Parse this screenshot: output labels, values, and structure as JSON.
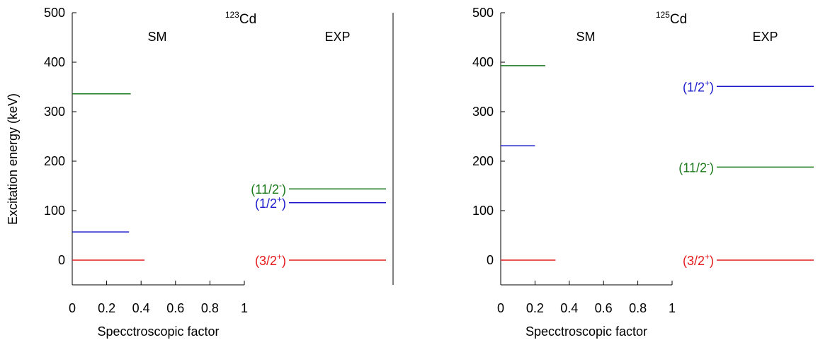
{
  "ylabel": "Excitation energy (keV)",
  "chart_data": [
    {
      "type": "bar",
      "nucleus": {
        "mass": "123",
        "symbol": "Cd"
      },
      "sm_label": "SM",
      "exp_label": "EXP",
      "xlabel": "Specctroscopic factor",
      "xticks": [
        "0",
        "0.2",
        "0.4",
        "0.6",
        "0.8",
        "1"
      ],
      "yticks": [
        "0",
        "100",
        "200",
        "300",
        "400",
        "500"
      ],
      "xlim": [
        0,
        1
      ],
      "ylim": [
        -50,
        500
      ],
      "sm_levels": [
        {
          "energy": 0,
          "factor": 0.42,
          "color": "#e41a1c"
        },
        {
          "energy": 57,
          "factor": 0.33,
          "color": "#1a1acc"
        },
        {
          "energy": 336,
          "factor": 0.34,
          "color": "#1b7a1b"
        }
      ],
      "exp_levels": [
        {
          "energy": 0,
          "base": "(3/2",
          "sup": "+",
          "close": ")",
          "color": "#e41a1c"
        },
        {
          "energy": 116,
          "base": "(1/2",
          "sup": "+",
          "close": ")",
          "color": "#1a1acc"
        },
        {
          "energy": 144,
          "base": "(11/2",
          "sup": "-",
          "close": ")",
          "color": "#1b7a1b"
        }
      ]
    },
    {
      "type": "bar",
      "nucleus": {
        "mass": "125",
        "symbol": "Cd"
      },
      "sm_label": "SM",
      "exp_label": "EXP",
      "xlabel": "Specctroscopic factor",
      "xticks": [
        "0",
        "0.2",
        "0.4",
        "0.6",
        "0.8",
        "1"
      ],
      "yticks": [
        "0",
        "100",
        "200",
        "300",
        "400",
        "500"
      ],
      "xlim": [
        0,
        1
      ],
      "ylim": [
        -50,
        500
      ],
      "sm_levels": [
        {
          "energy": 0,
          "factor": 0.32,
          "color": "#e41a1c"
        },
        {
          "energy": 231,
          "factor": 0.2,
          "color": "#1a1acc"
        },
        {
          "energy": 393,
          "factor": 0.26,
          "color": "#1b7a1b"
        }
      ],
      "exp_levels": [
        {
          "energy": 0,
          "base": "(3/2",
          "sup": "+",
          "close": ")",
          "color": "#e41a1c"
        },
        {
          "energy": 188,
          "base": "(11/2",
          "sup": "-",
          "close": ")",
          "color": "#1b7a1b"
        },
        {
          "energy": 351,
          "base": "(1/2",
          "sup": "+",
          "close": ")",
          "color": "#1a1acc"
        }
      ]
    }
  ]
}
